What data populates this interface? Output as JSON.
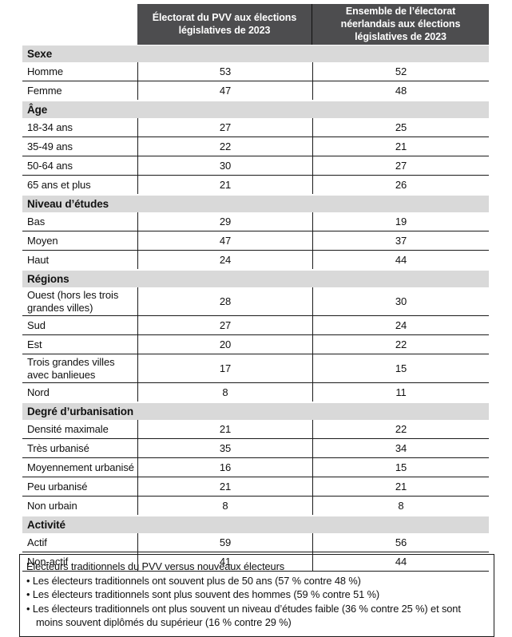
{
  "header": {
    "col2": "Électorat du PVV aux élections législatives de 2023",
    "col3": "Ensemble de l’électorat néerlandais aux élections législatives de 2023"
  },
  "colors": {
    "header_bg": "#4d4d4f",
    "band_bg": "#d9d9d9",
    "line": "#1a1a1a"
  },
  "table": {
    "sections": [
      {
        "title": "Sexe",
        "rows": [
          {
            "label": "Homme",
            "pvv": "53",
            "ensemble": "52"
          },
          {
            "label": "Femme",
            "pvv": "47",
            "ensemble": "48"
          }
        ]
      },
      {
        "title": "Âge",
        "rows": [
          {
            "label": "18-34 ans",
            "pvv": "27",
            "ensemble": "25"
          },
          {
            "label": "35-49 ans",
            "pvv": "22",
            "ensemble": "21"
          },
          {
            "label": "50-64 ans",
            "pvv": "30",
            "ensemble": "27"
          },
          {
            "label": "65 ans et plus",
            "pvv": "21",
            "ensemble": "26"
          }
        ]
      },
      {
        "title": "Niveau d’études",
        "rows": [
          {
            "label": "Bas",
            "pvv": "29",
            "ensemble": "19"
          },
          {
            "label": "Moyen",
            "pvv": "47",
            "ensemble": "37"
          },
          {
            "label": "Haut",
            "pvv": "24",
            "ensemble": "44"
          }
        ]
      },
      {
        "title": "Régions",
        "rows": [
          {
            "label": "Ouest (hors les trois grandes villes)",
            "pvv": "28",
            "ensemble": "30"
          },
          {
            "label": "Sud",
            "pvv": "27",
            "ensemble": "24"
          },
          {
            "label": "Est",
            "pvv": "20",
            "ensemble": "22"
          },
          {
            "label": "Trois grandes villes avec banlieues",
            "pvv": "17",
            "ensemble": "15"
          },
          {
            "label": "Nord",
            "pvv": "8",
            "ensemble": "11"
          }
        ]
      },
      {
        "title": "Degré d’urbanisation",
        "rows": [
          {
            "label": "Densité maximale",
            "pvv": "21",
            "ensemble": "22"
          },
          {
            "label": "Très urbanisé",
            "pvv": "35",
            "ensemble": "34"
          },
          {
            "label": "Moyennement urbanisé",
            "pvv": "16",
            "ensemble": "15"
          },
          {
            "label": "Peu urbanisé",
            "pvv": "21",
            "ensemble": "21"
          },
          {
            "label": "Non urbain",
            "pvv": "8",
            "ensemble": "8"
          }
        ]
      },
      {
        "title": "Activité",
        "rows": [
          {
            "label": "Actif",
            "pvv": "59",
            "ensemble": "56"
          },
          {
            "label": "Non-actif",
            "pvv": "41",
            "ensemble": "44"
          }
        ]
      }
    ]
  },
  "note": {
    "title": "Electeurs traditionnels du PVV versus nouveaux électeurs",
    "bullets": [
      "Les électeurs traditionnels ont souvent plus de 50 ans (57 % contre 48 %)",
      "Les électeurs traditionnels sont plus souvent des hommes (59 % contre 51 %)",
      "Les électeurs traditionnels ont plus souvent un niveau d’études faible (36 % contre 25 %) et sont moins souvent diplômés du supérieur (16 % contre 29 %)"
    ]
  }
}
